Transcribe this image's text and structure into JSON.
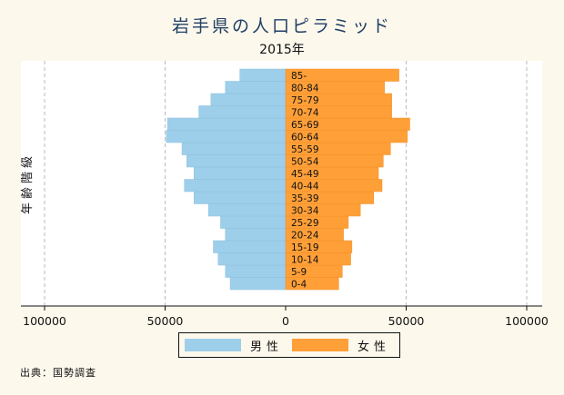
{
  "chart_data": {
    "type": "bar",
    "orientation": "horizontal",
    "title": "岩手県の人口ピラミッド",
    "subtitle": "2015年",
    "ylabel": "年齢階級",
    "categories": [
      "0-4",
      "5-9",
      "10-14",
      "15-19",
      "20-24",
      "25-29",
      "30-34",
      "35-39",
      "40-44",
      "45-49",
      "50-54",
      "55-59",
      "60-64",
      "65-69",
      "70-74",
      "75-79",
      "80-84",
      "85-"
    ],
    "series": [
      {
        "name": "男性",
        "color": "#9ecfea",
        "values": [
          23000,
          25000,
          28000,
          30000,
          25000,
          27000,
          32000,
          38000,
          42000,
          38000,
          41000,
          43000,
          49500,
          49000,
          36000,
          31000,
          25000,
          19000
        ]
      },
      {
        "name": "女性",
        "color": "#ff9f38",
        "values": [
          22000,
          23500,
          27000,
          27500,
          24000,
          26000,
          31000,
          36500,
          40000,
          38500,
          40500,
          43500,
          50500,
          51500,
          44000,
          44000,
          41000,
          47000
        ]
      }
    ],
    "xlim": [
      -100000,
      100000
    ],
    "xticks": [
      {
        "value": -100000,
        "label": "100000"
      },
      {
        "value": -50000,
        "label": "50000"
      },
      {
        "value": 0,
        "label": "0"
      },
      {
        "value": 50000,
        "label": "50000"
      },
      {
        "value": 100000,
        "label": "100000"
      }
    ],
    "grid": true,
    "legend_position": "bottom"
  },
  "source_note": "出典：国勢調査"
}
